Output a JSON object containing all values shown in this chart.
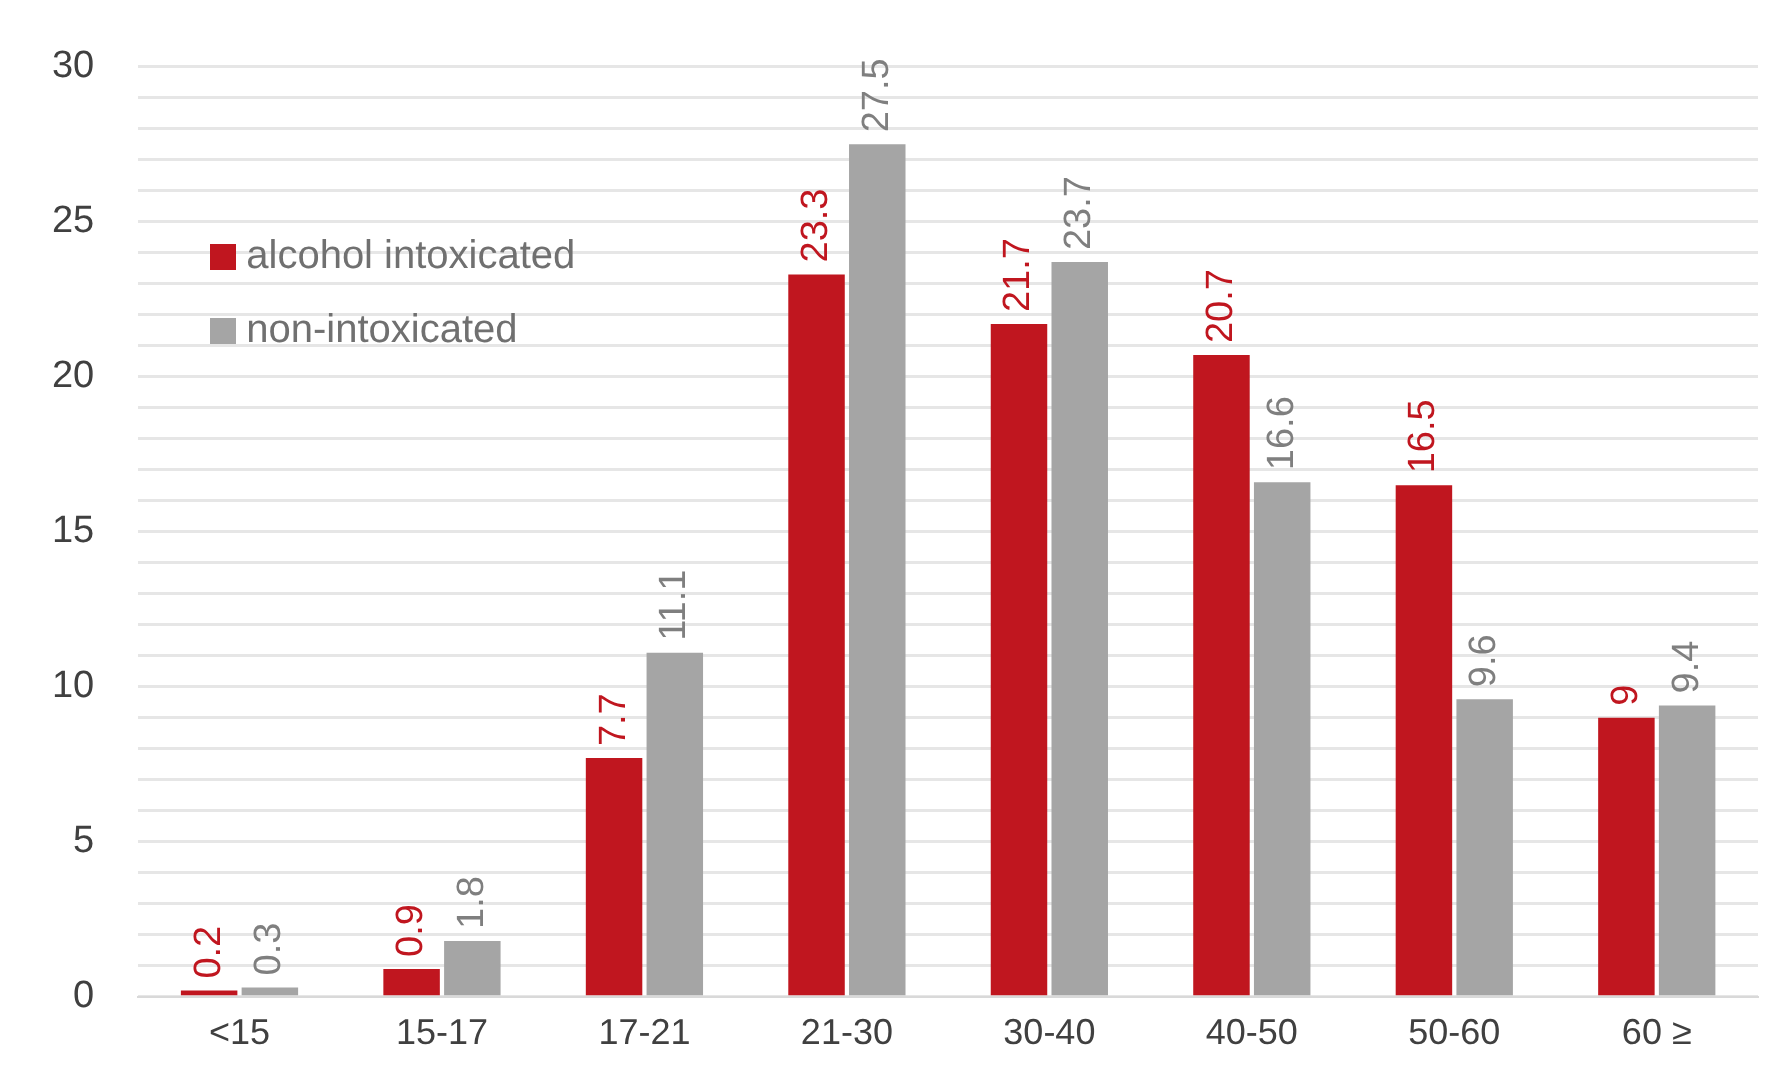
{
  "chart_data": {
    "type": "bar",
    "categories": [
      "<15",
      "15-17",
      "17-21",
      "21-30",
      "30-40",
      "40-50",
      "50-60",
      "60 ≥"
    ],
    "series": [
      {
        "name": "alcohol intoxicated",
        "color": "#c0161f",
        "values": [
          0.2,
          0.9,
          7.7,
          23.3,
          21.7,
          20.7,
          16.5,
          9
        ]
      },
      {
        "name": "non-intoxicated",
        "color": "#a5a5a5",
        "values": [
          0.3,
          1.8,
          11.1,
          27.5,
          23.7,
          16.6,
          9.6,
          9.4
        ]
      }
    ],
    "ylim": [
      0,
      30
    ],
    "yticks": [
      0,
      {
        "value": 1,
        "label": null
      },
      {
        "value": 2,
        "label": null
      },
      {
        "value": 3,
        "label": null
      },
      {
        "value": 4,
        "label": null
      },
      5,
      {
        "value": 6,
        "label": null
      },
      {
        "value": 7,
        "label": null
      },
      {
        "value": 8,
        "label": null
      },
      {
        "value": 9,
        "label": null
      },
      10,
      {
        "value": 11,
        "label": null
      },
      {
        "value": 12,
        "label": null
      },
      {
        "value": 13,
        "label": null
      },
      {
        "value": 14,
        "label": null
      },
      15,
      {
        "value": 16,
        "label": null
      },
      {
        "value": 17,
        "label": null
      },
      {
        "value": 18,
        "label": null
      },
      {
        "value": 19,
        "label": null
      },
      20,
      {
        "value": 21,
        "label": null
      },
      {
        "value": 22,
        "label": null
      },
      {
        "value": 23,
        "label": null
      },
      {
        "value": 24,
        "label": null
      },
      25,
      {
        "value": 26,
        "label": null
      },
      {
        "value": 27,
        "label": null
      },
      {
        "value": 28,
        "label": null
      },
      {
        "value": 29,
        "label": null
      },
      30
    ],
    "grid": "y",
    "legend": "top left",
    "data_labels": true
  }
}
